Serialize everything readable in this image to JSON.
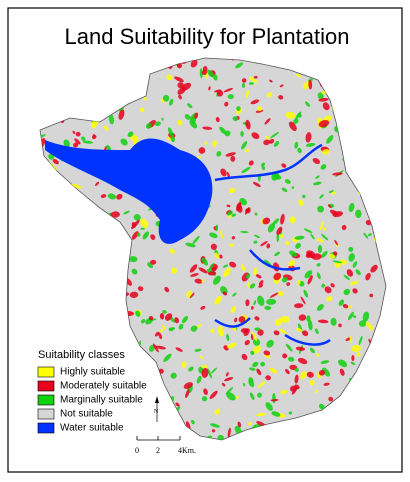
{
  "title": "Land Suitability for Plantation",
  "legend": {
    "title": "Suitability classes",
    "items": [
      {
        "label": "Highly suitable",
        "color": "#ffff00"
      },
      {
        "label": "Moderately suitable",
        "color": "#e8001c"
      },
      {
        "label": "Marginally  suitable",
        "color": "#10d010"
      },
      {
        "label": "Not suitable",
        "color": "#d6d6d6"
      },
      {
        "label": "Water suitable",
        "color": "#0033ff"
      }
    ]
  },
  "scale": {
    "labels": [
      "0",
      "2",
      "4Km."
    ]
  }
}
